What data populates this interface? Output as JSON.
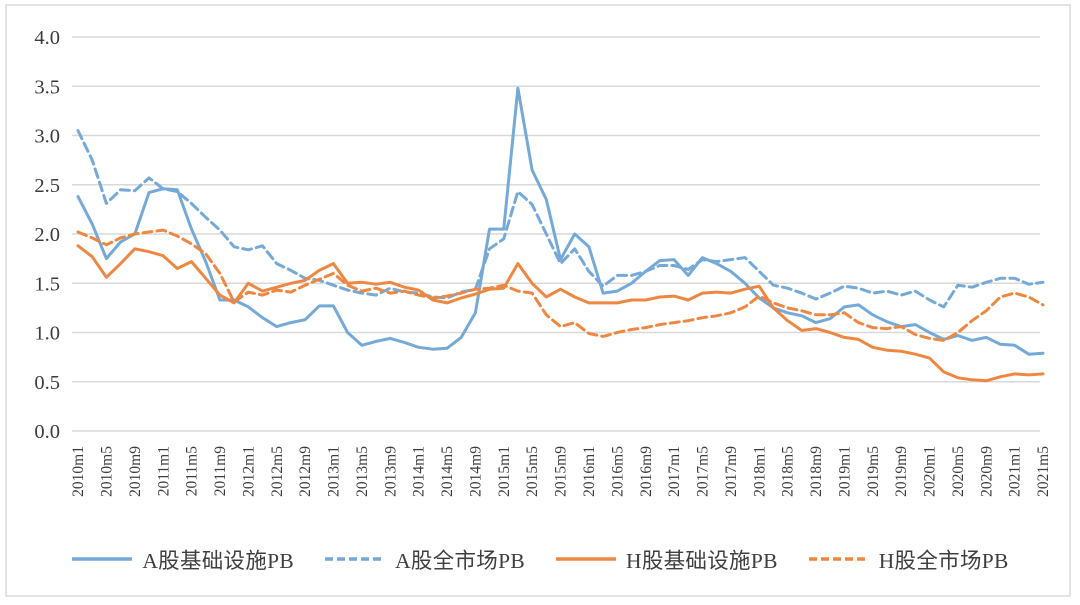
{
  "figure": {
    "background": "#ffffff",
    "border_color": "#e4e4e4",
    "text_color": "#3c3c3c",
    "gridline_color": "#d9d9d9"
  },
  "chart_data": {
    "type": "line",
    "title": "",
    "xlabel": "",
    "ylabel": "",
    "ylim": [
      0.0,
      4.0
    ],
    "y_tick_step": 0.5,
    "grid": "horizontal",
    "legend_position": "bottom",
    "y_ticks": [
      {
        "value": 0.0,
        "label": "0.0"
      },
      {
        "value": 0.5,
        "label": "0.5"
      },
      {
        "value": 1.0,
        "label": "1.0"
      },
      {
        "value": 1.5,
        "label": "1.5"
      },
      {
        "value": 2.0,
        "label": "2.0"
      },
      {
        "value": 2.5,
        "label": "2.5"
      },
      {
        "value": 3.0,
        "label": "3.0"
      },
      {
        "value": 3.5,
        "label": "3.5"
      },
      {
        "value": 4.0,
        "label": "4.0"
      }
    ],
    "x_tick_labels": [
      "2010m1",
      "2010m5",
      "2010m9",
      "2011m1",
      "2011m5",
      "2011m9",
      "2012m1",
      "2012m5",
      "2012m9",
      "2013m1",
      "2013m5",
      "2013m9",
      "2014m1",
      "2014m5",
      "2014m9",
      "2015m1",
      "2015m5",
      "2015m9",
      "2016m1",
      "2016m5",
      "2016m9",
      "2017m1",
      "2017m5",
      "2017m9",
      "2018m1",
      "2018m5",
      "2018m9",
      "2019m1",
      "2019m5",
      "2019m9",
      "2020m1",
      "2020m5",
      "2020m9",
      "2021m1",
      "2021m5"
    ],
    "categories": [
      "2010m1",
      "2010m3",
      "2010m5",
      "2010m7",
      "2010m9",
      "2010m11",
      "2011m1",
      "2011m3",
      "2011m5",
      "2011m7",
      "2011m9",
      "2011m11",
      "2012m1",
      "2012m3",
      "2012m5",
      "2012m7",
      "2012m9",
      "2012m11",
      "2013m1",
      "2013m3",
      "2013m5",
      "2013m7",
      "2013m9",
      "2013m11",
      "2014m1",
      "2014m3",
      "2014m5",
      "2014m7",
      "2014m9",
      "2014m11",
      "2015m1",
      "2015m3",
      "2015m5",
      "2015m7",
      "2015m9",
      "2015m11",
      "2016m1",
      "2016m3",
      "2016m5",
      "2016m7",
      "2016m9",
      "2016m11",
      "2017m1",
      "2017m3",
      "2017m5",
      "2017m7",
      "2017m9",
      "2017m11",
      "2018m1",
      "2018m3",
      "2018m5",
      "2018m7",
      "2018m9",
      "2018m11",
      "2019m1",
      "2019m3",
      "2019m5",
      "2019m7",
      "2019m9",
      "2019m11",
      "2020m1",
      "2020m3",
      "2020m5",
      "2020m7",
      "2020m9",
      "2020m11",
      "2021m1",
      "2021m3",
      "2021m5"
    ],
    "series": [
      {
        "name": "A股基础设施PB",
        "color": "#74a9d8",
        "dash": false,
        "values": [
          2.38,
          2.1,
          1.75,
          1.92,
          2.0,
          2.42,
          2.46,
          2.45,
          2.05,
          1.72,
          1.33,
          1.33,
          1.26,
          1.15,
          1.06,
          1.1,
          1.13,
          1.27,
          1.27,
          1.0,
          0.87,
          0.91,
          0.94,
          0.9,
          0.85,
          0.83,
          0.84,
          0.95,
          1.2,
          2.05,
          2.05,
          3.48,
          2.65,
          2.35,
          1.74,
          2.0,
          1.87,
          1.4,
          1.42,
          1.5,
          1.62,
          1.73,
          1.74,
          1.58,
          1.76,
          1.7,
          1.62,
          1.5,
          1.35,
          1.25,
          1.2,
          1.17,
          1.1,
          1.14,
          1.26,
          1.28,
          1.18,
          1.11,
          1.06,
          1.08,
          1.0,
          0.93,
          0.97,
          0.92,
          0.95,
          0.88,
          0.87,
          0.78,
          0.79
        ]
      },
      {
        "name": "A股全市场PB",
        "color": "#74a9d8",
        "dash": true,
        "values": [
          3.05,
          2.75,
          2.31,
          2.45,
          2.44,
          2.57,
          2.46,
          2.43,
          2.31,
          2.17,
          2.04,
          1.87,
          1.84,
          1.88,
          1.7,
          1.63,
          1.55,
          1.53,
          1.48,
          1.43,
          1.4,
          1.38,
          1.45,
          1.41,
          1.4,
          1.36,
          1.35,
          1.41,
          1.44,
          1.85,
          1.95,
          2.43,
          2.3,
          2.0,
          1.7,
          1.85,
          1.62,
          1.47,
          1.58,
          1.58,
          1.62,
          1.68,
          1.68,
          1.64,
          1.74,
          1.72,
          1.74,
          1.76,
          1.62,
          1.48,
          1.45,
          1.4,
          1.34,
          1.4,
          1.47,
          1.45,
          1.4,
          1.42,
          1.38,
          1.42,
          1.33,
          1.26,
          1.48,
          1.46,
          1.51,
          1.55,
          1.55,
          1.49,
          1.51
        ]
      },
      {
        "name": "H股基础设施PB",
        "color": "#ee8742",
        "dash": false,
        "values": [
          1.88,
          1.77,
          1.56,
          1.7,
          1.85,
          1.82,
          1.78,
          1.65,
          1.72,
          1.55,
          1.38,
          1.3,
          1.5,
          1.42,
          1.46,
          1.5,
          1.53,
          1.63,
          1.7,
          1.5,
          1.51,
          1.49,
          1.51,
          1.46,
          1.43,
          1.33,
          1.3,
          1.35,
          1.39,
          1.44,
          1.45,
          1.7,
          1.5,
          1.36,
          1.44,
          1.36,
          1.3,
          1.3,
          1.3,
          1.33,
          1.33,
          1.36,
          1.37,
          1.33,
          1.4,
          1.41,
          1.4,
          1.44,
          1.47,
          1.25,
          1.12,
          1.02,
          1.04,
          1.0,
          0.95,
          0.93,
          0.85,
          0.82,
          0.81,
          0.78,
          0.74,
          0.6,
          0.54,
          0.52,
          0.51,
          0.55,
          0.58,
          0.57,
          0.58
        ]
      },
      {
        "name": "H股全市场PB",
        "color": "#ee8742",
        "dash": true,
        "values": [
          2.02,
          1.96,
          1.89,
          1.96,
          2.0,
          2.02,
          2.04,
          1.98,
          1.9,
          1.8,
          1.6,
          1.31,
          1.41,
          1.38,
          1.43,
          1.41,
          1.48,
          1.54,
          1.6,
          1.48,
          1.42,
          1.45,
          1.4,
          1.42,
          1.38,
          1.35,
          1.37,
          1.4,
          1.44,
          1.45,
          1.48,
          1.42,
          1.4,
          1.18,
          1.06,
          1.1,
          0.99,
          0.96,
          1.0,
          1.03,
          1.05,
          1.08,
          1.1,
          1.12,
          1.15,
          1.17,
          1.2,
          1.26,
          1.37,
          1.3,
          1.25,
          1.22,
          1.18,
          1.18,
          1.2,
          1.1,
          1.05,
          1.04,
          1.06,
          0.98,
          0.94,
          0.92,
          1.0,
          1.12,
          1.22,
          1.36,
          1.4,
          1.36,
          1.28
        ]
      }
    ]
  }
}
